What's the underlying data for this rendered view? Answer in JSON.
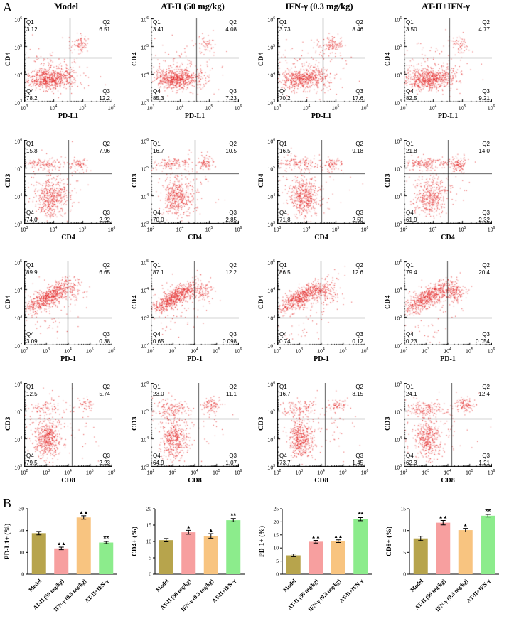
{
  "panel_labels": {
    "a": "A",
    "b": "B"
  },
  "columns": [
    "Model",
    "AT-II (50 mg/kg)",
    "IFN-γ (0.3 mg/kg)",
    "AT-II+IFN-γ"
  ],
  "quadrant_names": {
    "q1": "Q1",
    "q2": "Q2",
    "q3": "Q3",
    "q4": "Q4"
  },
  "flow": {
    "dot_color": "#dc1919",
    "rows": [
      {
        "xlabel": "PD-L1",
        "x_exps": [
          3,
          4,
          5,
          6
        ],
        "y_exps": [
          6,
          5,
          4,
          3
        ],
        "plots": [
          {
            "ylabel": "CD4",
            "q1": "3.12",
            "q2": "6.51",
            "q3": "12.2",
            "q4": "78.2"
          },
          {
            "ylabel": "CD4",
            "q1": "3.41",
            "q2": "4.08",
            "q3": "7.23",
            "q4": "85.3"
          },
          {
            "ylabel": "CD4",
            "q1": "3.73",
            "q2": "8.46",
            "q3": "17.6",
            "q4": "70.2"
          },
          {
            "ylabel": "CD4",
            "q1": "3.50",
            "q2": "4.77",
            "q3": "9.21",
            "q4": "82.5"
          }
        ]
      },
      {
        "xlabel": "CD4",
        "x_exps": [
          3,
          4,
          5,
          6
        ],
        "y_exps": [
          6,
          5,
          4,
          3
        ],
        "plots": [
          {
            "ylabel": "CD3",
            "q1": "15.8",
            "q2": "7.96",
            "q3": "2.22",
            "q4": "74.0"
          },
          {
            "ylabel": "CD3",
            "q1": "16.7",
            "q2": "10.5",
            "q3": "2.85",
            "q4": "70.0"
          },
          {
            "ylabel": "CD4",
            "q1": "16.5",
            "q2": "9.18",
            "q3": "2.50",
            "q4": "71.8"
          },
          {
            "ylabel": "CD3",
            "q1": "21.8",
            "q2": "14.0",
            "q3": "2.32",
            "q4": "61.9"
          }
        ]
      },
      {
        "xlabel": "PD-1",
        "x_exps": [
          2,
          3,
          4,
          5,
          6
        ],
        "y_exps": [
          5,
          4,
          3,
          2
        ],
        "plots": [
          {
            "ylabel": "CD4",
            "q1": "89.9",
            "q2": "6.65",
            "q3": "0.38",
            "q4": "3.09"
          },
          {
            "ylabel": "CD4",
            "q1": "87.1",
            "q2": "12.2",
            "q3": "0.098",
            "q4": "0.65"
          },
          {
            "ylabel": "CD4",
            "q1": "86.5",
            "q2": "12.6",
            "q3": "0.12",
            "q4": "0.74"
          },
          {
            "ylabel": "CD4",
            "q1": "79.4",
            "q2": "20.4",
            "q3": "0.054",
            "q4": "0.23"
          }
        ]
      },
      {
        "xlabel": "CD8",
        "x_exps": [
          2,
          3,
          4,
          5,
          6
        ],
        "y_exps": [
          6,
          5,
          4,
          3
        ],
        "plots": [
          {
            "ylabel": "CD3",
            "q1": "12.5",
            "q2": "5.74",
            "q3": "2.23",
            "q4": "79.5"
          },
          {
            "ylabel": "CD3",
            "q1": "23.0",
            "q2": "11.1",
            "q3": "1.07",
            "q4": "64.9"
          },
          {
            "ylabel": "CD3",
            "q1": "16.7",
            "q2": "8.15",
            "q3": "1.45",
            "q4": "73.7"
          },
          {
            "ylabel": "CD3",
            "q1": "24.1",
            "q2": "12.4",
            "q3": "1.21",
            "q4": "62.3"
          }
        ]
      }
    ]
  },
  "chart_data": [
    {
      "type": "bar",
      "ylabel": "PD-L1+ (%)",
      "categories": [
        "Model",
        "AT-II (50 mg/kg)",
        "IFN-γ (0.3 mg/kg)",
        "AT-II+IFN-γ"
      ],
      "values": [
        18.8,
        11.8,
        26.0,
        14.5
      ],
      "errors": [
        0.8,
        0.6,
        0.8,
        0.5
      ],
      "annotations": [
        "",
        "▲▲",
        "▲▲",
        "**"
      ],
      "ylim": [
        0,
        30
      ],
      "yticks": [
        0,
        10,
        20,
        30
      ],
      "colors": [
        "#b7a44c",
        "#f79f9f",
        "#f8c480",
        "#8cec8c"
      ]
    },
    {
      "type": "bar",
      "ylabel": "CD4+ (%)",
      "categories": [
        "Model",
        "AT-II (50 mg/kg)",
        "IFN-γ (0.3 mg/kg)",
        "AT-II+IFN-γ"
      ],
      "values": [
        10.4,
        12.8,
        11.7,
        16.5
      ],
      "errors": [
        0.5,
        0.6,
        0.7,
        0.5
      ],
      "annotations": [
        "",
        "▲",
        "▲",
        "**"
      ],
      "ylim": [
        0,
        20
      ],
      "yticks": [
        0,
        5,
        10,
        15,
        20
      ],
      "colors": [
        "#b7a44c",
        "#f79f9f",
        "#f8c480",
        "#8cec8c"
      ]
    },
    {
      "type": "bar",
      "ylabel": "PD-1+ (%)",
      "categories": [
        "Model",
        "AT-II (50 mg/kg)",
        "IFN-γ (0.3 mg/kg)",
        "AT-II+IFN-γ"
      ],
      "values": [
        7.2,
        12.4,
        12.6,
        21.0
      ],
      "errors": [
        0.5,
        0.5,
        0.5,
        0.6
      ],
      "annotations": [
        "",
        "▲▲",
        "▲▲",
        "**"
      ],
      "ylim": [
        0,
        25
      ],
      "yticks": [
        0,
        5,
        10,
        15,
        20,
        25
      ],
      "colors": [
        "#b7a44c",
        "#f79f9f",
        "#f8c480",
        "#8cec8c"
      ]
    },
    {
      "type": "bar",
      "ylabel": "CD8+ (%)",
      "categories": [
        "Model",
        "AT-II (50 mg/kg)",
        "IFN-γ (0.3 mg/kg)",
        "AT-II+IFN-γ"
      ],
      "values": [
        8.2,
        11.8,
        10.1,
        13.4
      ],
      "errors": [
        0.5,
        0.5,
        0.4,
        0.3
      ],
      "annotations": [
        "",
        "▲▲",
        "▲",
        "**"
      ],
      "ylim": [
        0,
        15
      ],
      "yticks": [
        0,
        5,
        10,
        15
      ],
      "colors": [
        "#b7a44c",
        "#f79f9f",
        "#f8c480",
        "#8cec8c"
      ]
    }
  ]
}
